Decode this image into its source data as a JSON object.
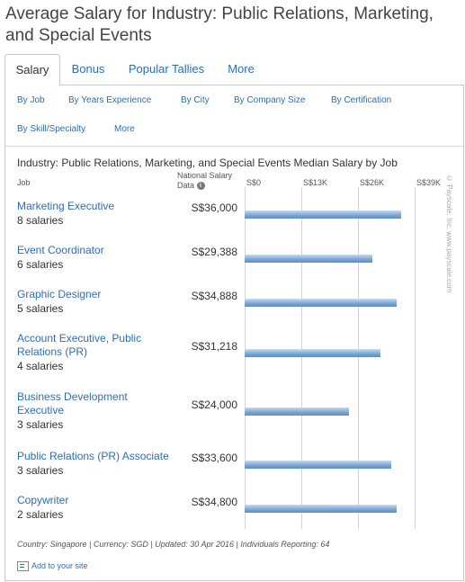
{
  "page": {
    "title": "Average Salary for Industry: Public Relations, Marketing, and Special Events"
  },
  "tabs": [
    {
      "label": "Salary",
      "active": true
    },
    {
      "label": "Bonus",
      "active": false
    },
    {
      "label": "Popular Tallies",
      "active": false
    },
    {
      "label": "More",
      "active": false
    }
  ],
  "subnav": [
    {
      "label": "By Job"
    },
    {
      "label": "By Years Experience"
    },
    {
      "label": "By City"
    },
    {
      "label": "By Company Size"
    },
    {
      "label": "By Certification"
    },
    {
      "label": "By Skill/Specialty"
    },
    {
      "label": "More"
    }
  ],
  "table": {
    "col_job": "Job",
    "col_national": "National Salary Data"
  },
  "chart_data": {
    "type": "bar",
    "orientation": "horizontal",
    "title": "Industry: Public Relations, Marketing, and Special Events Median Salary by Job",
    "xlim": [
      0,
      39000
    ],
    "xticks": [
      0,
      13000,
      26000,
      39000
    ],
    "tick_labels": [
      "S$0",
      "S$13K",
      "S$26K",
      "S$39K"
    ],
    "grid": true,
    "categories": [
      "Marketing Executive",
      "Event Coordinator",
      "Graphic Designer",
      "Account Executive, Public Relations (PR)",
      "Business Development Executive",
      "Public Relations (PR) Associate",
      "Copywriter"
    ],
    "counts": [
      "8 salaries",
      "6 salaries",
      "5 salaries",
      "4 salaries",
      "3 salaries",
      "3 salaries",
      "2 salaries"
    ],
    "value_labels": [
      "S$36,000",
      "S$29,388",
      "S$34,888",
      "S$31,218",
      "S$24,000",
      "S$33,600",
      "S$34,800"
    ],
    "values": [
      36000,
      29388,
      34888,
      31218,
      24000,
      33600,
      34800
    ],
    "bar_color": "#7fa8d4"
  },
  "footer": {
    "info": "Country: Singapore | Currency: SGD | Updated: 30 Apr 2016 | Individuals Reporting: 64",
    "add_site": "Add to your site",
    "credit": "© Payscale, Inc.  www.payscale.com"
  },
  "colors": {
    "link": "#2a6ebb",
    "border": "#c8c8c8"
  }
}
